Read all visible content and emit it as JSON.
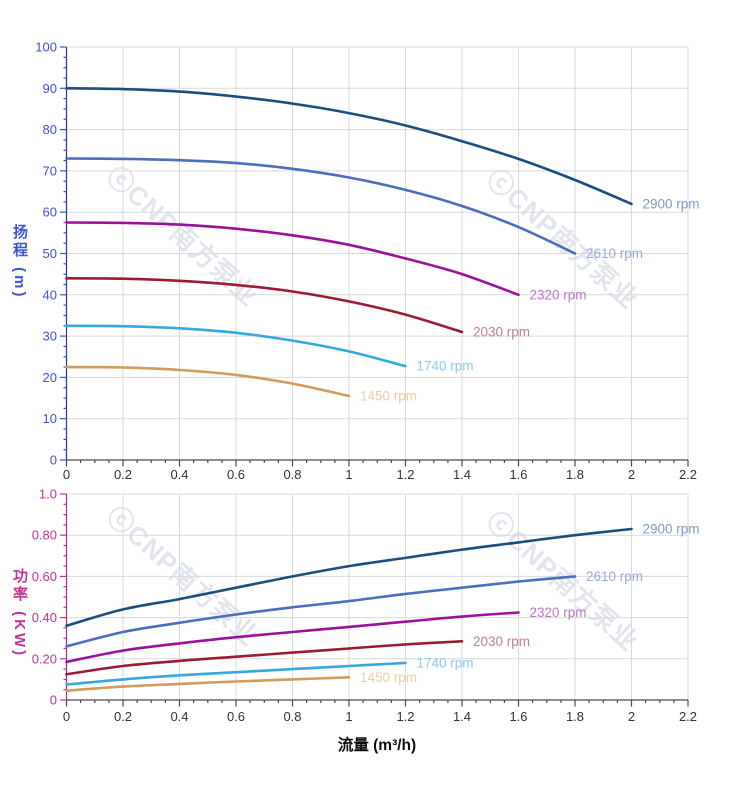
{
  "watermark": {
    "text": "ⓒCNP南方泵业",
    "color": "#e2e4ee"
  },
  "style": {
    "background": "#ffffff",
    "grid_color": "#d9d9d9",
    "x_axis_color": "#4a4a4a",
    "x_tick_label_color": "#333333"
  },
  "chart_data": [
    {
      "type": "line",
      "title": "",
      "xlabel": "",
      "ylabel": "扬程 (m)",
      "xlim": [
        0,
        2.2
      ],
      "ylim": [
        0,
        100
      ],
      "grid": true,
      "legend_position": "end-of-line-labels",
      "axis_color": "#4053d1",
      "axis_line_color": "#2b3582",
      "x_tick_values": [
        0,
        0.2,
        0.4,
        0.6,
        0.8,
        1,
        1.2,
        1.4,
        1.6,
        1.8,
        2,
        2.2
      ],
      "x_tick_labels": [
        "0",
        "0.2",
        "0.4",
        "0.6",
        "0.8",
        "1",
        "1.2",
        "1.4",
        "1.6",
        "1.8",
        "2",
        "2.2"
      ],
      "x_minor_step": 0.05,
      "y_tick_values": [
        0,
        10,
        20,
        30,
        40,
        50,
        60,
        70,
        80,
        90,
        100
      ],
      "y_tick_labels": [
        "0",
        "10",
        "20",
        "30",
        "40",
        "50",
        "60",
        "70",
        "80",
        "90",
        "100"
      ],
      "y_minor_step": 2.5,
      "series": [
        {
          "name": "2900 rpm",
          "color": "#1c4e7d",
          "label_color": "#8099c2",
          "points": [
            [
              0,
              90
            ],
            [
              0.2,
              89.8
            ],
            [
              0.4,
              89.2
            ],
            [
              0.6,
              88.0
            ],
            [
              0.8,
              86.3
            ],
            [
              1.0,
              84.0
            ],
            [
              1.2,
              81.0
            ],
            [
              1.4,
              77.2
            ],
            [
              1.6,
              72.9
            ],
            [
              1.8,
              67.8
            ],
            [
              2.0,
              62
            ]
          ]
        },
        {
          "name": "2610 rpm",
          "color": "#4a6fbf",
          "label_color": "#9aa9e0",
          "points": [
            [
              0,
              73
            ],
            [
              0.2,
              72.9
            ],
            [
              0.4,
              72.6
            ],
            [
              0.6,
              71.9
            ],
            [
              0.8,
              70.5
            ],
            [
              1.0,
              68.4
            ],
            [
              1.2,
              65.4
            ],
            [
              1.4,
              61.5
            ],
            [
              1.6,
              56.4
            ],
            [
              1.8,
              50
            ]
          ]
        },
        {
          "name": "2320 rpm",
          "color": "#9a129b",
          "label_color": "#bc77c8",
          "points": [
            [
              0,
              57.5
            ],
            [
              0.2,
              57.4
            ],
            [
              0.4,
              57.0
            ],
            [
              0.6,
              56.0
            ],
            [
              0.8,
              54.4
            ],
            [
              1.0,
              52.1
            ],
            [
              1.2,
              48.8
            ],
            [
              1.4,
              45.0
            ],
            [
              1.6,
              40
            ]
          ]
        },
        {
          "name": "2030 rpm",
          "color": "#9c1b33",
          "label_color": "#c27e96",
          "points": [
            [
              0,
              44
            ],
            [
              0.2,
              43.9
            ],
            [
              0.4,
              43.4
            ],
            [
              0.6,
              42.4
            ],
            [
              0.8,
              40.8
            ],
            [
              1.0,
              38.4
            ],
            [
              1.2,
              35.2
            ],
            [
              1.4,
              31
            ]
          ]
        },
        {
          "name": "1740 rpm",
          "color": "#35a8e0",
          "label_color": "#8bcbf0",
          "points": [
            [
              0,
              32.5
            ],
            [
              0.2,
              32.4
            ],
            [
              0.4,
              31.9
            ],
            [
              0.6,
              30.8
            ],
            [
              0.8,
              28.9
            ],
            [
              1.0,
              26.3
            ],
            [
              1.2,
              22.7
            ]
          ]
        },
        {
          "name": "1450 rpm",
          "color": "#d29a5b",
          "label_color": "#e9cfa6",
          "points": [
            [
              0,
              22.5
            ],
            [
              0.2,
              22.4
            ],
            [
              0.4,
              21.8
            ],
            [
              0.6,
              20.6
            ],
            [
              0.8,
              18.5
            ],
            [
              1.0,
              15.5
            ]
          ]
        }
      ]
    },
    {
      "type": "line",
      "title": "",
      "xlabel": "流量 (m³/h)",
      "ylabel": "功率 (KW)",
      "xlim": [
        0,
        2.2
      ],
      "ylim": [
        0,
        1.0
      ],
      "grid": true,
      "legend_position": "end-of-line-labels",
      "axis_color": "#c43399",
      "axis_line_color": "#a52c88",
      "x_tick_values": [
        0,
        0.2,
        0.4,
        0.6,
        0.8,
        1,
        1.2,
        1.4,
        1.6,
        1.8,
        2,
        2.2
      ],
      "x_tick_labels": [
        "0",
        "0.2",
        "0.4",
        "0.6",
        "0.8",
        "1",
        "1.2",
        "1.4",
        "1.6",
        "1.8",
        "2",
        "2.2"
      ],
      "x_minor_step": 0.05,
      "y_tick_values": [
        0,
        0.2,
        0.4,
        0.6,
        0.8,
        1.0
      ],
      "y_tick_labels": [
        "0",
        "0.20",
        "0.40",
        "0.60",
        "0.80",
        "1.0"
      ],
      "y_minor_step": 0.05,
      "series": [
        {
          "name": "2900 rpm",
          "color": "#1c4e7d",
          "label_color": "#8099c2",
          "points": [
            [
              0,
              0.36
            ],
            [
              0.2,
              0.44
            ],
            [
              0.4,
              0.49
            ],
            [
              0.6,
              0.545
            ],
            [
              0.8,
              0.6
            ],
            [
              1.0,
              0.65
            ],
            [
              1.2,
              0.69
            ],
            [
              1.4,
              0.73
            ],
            [
              1.6,
              0.765
            ],
            [
              1.8,
              0.8
            ],
            [
              2.0,
              0.83
            ]
          ]
        },
        {
          "name": "2610 rpm",
          "color": "#4a6fbf",
          "label_color": "#9aa9e0",
          "points": [
            [
              0,
              0.26
            ],
            [
              0.2,
              0.33
            ],
            [
              0.4,
              0.375
            ],
            [
              0.6,
              0.415
            ],
            [
              0.8,
              0.45
            ],
            [
              1.0,
              0.48
            ],
            [
              1.2,
              0.515
            ],
            [
              1.4,
              0.545
            ],
            [
              1.6,
              0.575
            ],
            [
              1.8,
              0.6
            ]
          ]
        },
        {
          "name": "2320 rpm",
          "color": "#9a129b",
          "label_color": "#bc77c8",
          "points": [
            [
              0,
              0.185
            ],
            [
              0.2,
              0.24
            ],
            [
              0.4,
              0.275
            ],
            [
              0.6,
              0.305
            ],
            [
              0.8,
              0.33
            ],
            [
              1.0,
              0.355
            ],
            [
              1.2,
              0.38
            ],
            [
              1.4,
              0.405
            ],
            [
              1.6,
              0.425
            ]
          ]
        },
        {
          "name": "2030 rpm",
          "color": "#9c1b33",
          "label_color": "#c27e96",
          "points": [
            [
              0,
              0.125
            ],
            [
              0.2,
              0.165
            ],
            [
              0.4,
              0.19
            ],
            [
              0.6,
              0.21
            ],
            [
              0.8,
              0.23
            ],
            [
              1.0,
              0.25
            ],
            [
              1.2,
              0.27
            ],
            [
              1.4,
              0.285
            ]
          ]
        },
        {
          "name": "1740 rpm",
          "color": "#35a8e0",
          "label_color": "#8bcbf0",
          "points": [
            [
              0,
              0.075
            ],
            [
              0.2,
              0.1
            ],
            [
              0.4,
              0.12
            ],
            [
              0.6,
              0.135
            ],
            [
              0.8,
              0.15
            ],
            [
              1.0,
              0.165
            ],
            [
              1.2,
              0.18
            ]
          ]
        },
        {
          "name": "1450 rpm",
          "color": "#d29a5b",
          "label_color": "#e9cfa6",
          "points": [
            [
              0,
              0.045
            ],
            [
              0.2,
              0.065
            ],
            [
              0.4,
              0.078
            ],
            [
              0.6,
              0.09
            ],
            [
              0.8,
              0.1
            ],
            [
              1.0,
              0.11
            ]
          ]
        }
      ]
    }
  ]
}
